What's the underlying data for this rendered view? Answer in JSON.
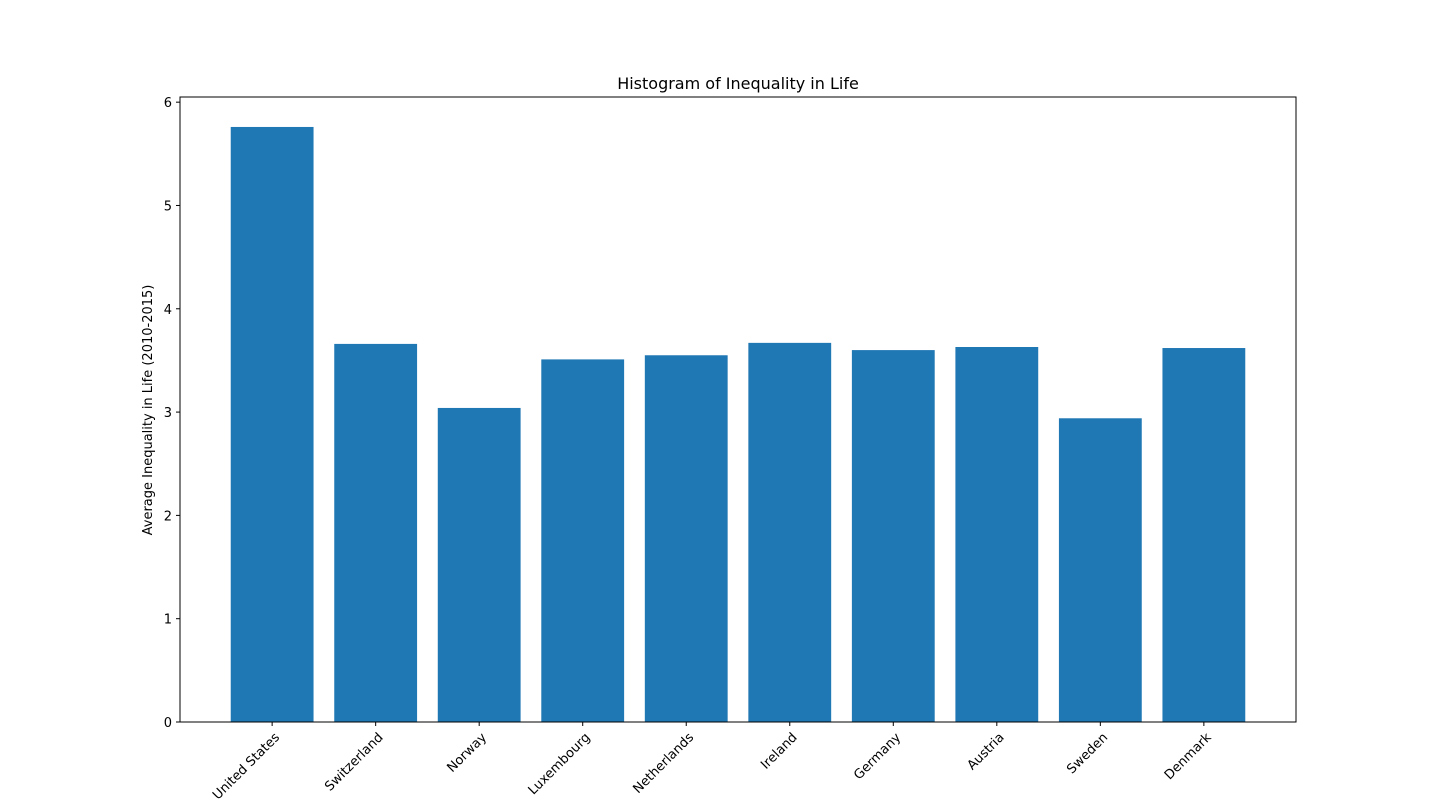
{
  "chart_data": {
    "type": "bar",
    "title": "Histogram of Inequality in Life",
    "xlabel": "",
    "ylabel": "Average Inequality in Life (2010-2015)",
    "categories": [
      "United States",
      "Switzerland",
      "Norway",
      "Luxembourg",
      "Netherlands",
      "Ireland",
      "Germany",
      "Austria",
      "Sweden",
      "Denmark"
    ],
    "values": [
      5.76,
      3.66,
      3.04,
      3.51,
      3.55,
      3.67,
      3.6,
      3.63,
      2.94,
      3.62
    ],
    "yticks": [
      0,
      1,
      2,
      3,
      4,
      5,
      6
    ],
    "ylim": [
      0,
      6.05
    ],
    "bar_color": "#1f77b4",
    "grid": false,
    "legend": "none"
  }
}
